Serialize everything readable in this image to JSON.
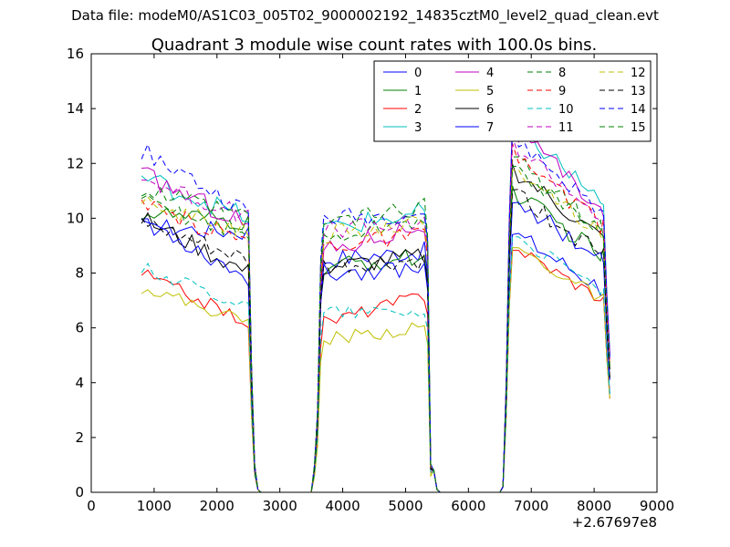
{
  "suptitle": "Data file: modeM0/AS1C03_005T02_9000002192_14835cztM0_level2_quad_clean.evt",
  "chart_data": {
    "type": "line",
    "title": "Quadrant 3 module wise count rates with 100.0s bins.",
    "xlabel": "",
    "ylabel": "",
    "x_offset_label": "+2.67697e8",
    "xlim": [
      0,
      9000
    ],
    "ylim": [
      0,
      16
    ],
    "x_ticks": [
      0,
      1000,
      2000,
      3000,
      4000,
      5000,
      6000,
      7000,
      8000,
      9000
    ],
    "y_ticks": [
      0,
      2,
      4,
      6,
      8,
      10,
      12,
      14,
      16
    ],
    "legend_position": "top-right",
    "legend_columns": 4,
    "x": [
      800,
      900,
      1000,
      1100,
      1200,
      1300,
      1400,
      1500,
      1600,
      1700,
      1800,
      1900,
      2000,
      2100,
      2200,
      2300,
      2400,
      2500,
      2550,
      2600,
      2650,
      2700,
      3500,
      3550,
      3600,
      3650,
      3700,
      3800,
      3900,
      4000,
      4100,
      4200,
      4300,
      4400,
      4500,
      4600,
      4700,
      4800,
      4900,
      5000,
      5100,
      5200,
      5300,
      5350,
      5400,
      5450,
      5500,
      5550,
      6500,
      6550,
      6600,
      6650,
      6700,
      6800,
      6900,
      7000,
      7100,
      7200,
      7300,
      7400,
      7500,
      7600,
      7700,
      7800,
      7900,
      8000,
      8100,
      8150,
      8200,
      8250
    ],
    "series": [
      {
        "name": "0",
        "color": "#0000ff",
        "dash": "solid",
        "level": [
          9.7,
          9.5,
          8.5,
          8.8,
          9.5
        ],
        "noise": 0.35
      },
      {
        "name": "1",
        "color": "#008000",
        "dash": "solid",
        "level": [
          10.2,
          9.8,
          8.2,
          8.6,
          11.0
        ],
        "noise": 0.35
      },
      {
        "name": "2",
        "color": "#ff0000",
        "dash": "solid",
        "level": [
          8.0,
          6.2,
          6.2,
          7.2,
          9.0
        ],
        "noise": 0.25
      },
      {
        "name": "3",
        "color": "#00bfbf",
        "dash": "solid",
        "level": [
          11.5,
          10.0,
          9.6,
          10.2,
          13.5
        ],
        "noise": 0.4
      },
      {
        "name": "4",
        "color": "#bf00bf",
        "dash": "solid",
        "level": [
          11.6,
          9.8,
          8.8,
          9.8,
          13.2
        ],
        "noise": 0.4
      },
      {
        "name": "5",
        "color": "#bfbf00",
        "dash": "solid",
        "level": [
          7.5,
          6.2,
          5.6,
          6.0,
          9.0
        ],
        "noise": 0.25
      },
      {
        "name": "6",
        "color": "#000000",
        "dash": "solid",
        "level": [
          10.0,
          8.0,
          8.2,
          8.6,
          11.8
        ],
        "noise": 0.35
      },
      {
        "name": "7",
        "color": "#0000ff",
        "dash": "solid",
        "level": [
          10.0,
          7.8,
          8.0,
          8.2,
          10.8
        ],
        "noise": 0.35
      },
      {
        "name": "8",
        "color": "#008000",
        "dash": "dashed",
        "level": [
          10.6,
          9.4,
          9.2,
          10.0,
          12.2
        ],
        "noise": 0.35
      },
      {
        "name": "9",
        "color": "#ff0000",
        "dash": "dashed",
        "level": [
          10.4,
          9.2,
          9.0,
          9.4,
          12.4
        ],
        "noise": 0.35
      },
      {
        "name": "10",
        "color": "#00bfbf",
        "dash": "dashed",
        "level": [
          8.2,
          6.8,
          6.6,
          6.6,
          9.4
        ],
        "noise": 0.25
      },
      {
        "name": "11",
        "color": "#bf00bf",
        "dash": "dashed",
        "level": [
          11.5,
          10.0,
          9.6,
          9.8,
          12.8
        ],
        "noise": 0.35
      },
      {
        "name": "12",
        "color": "#bfbf00",
        "dash": "dashed",
        "level": [
          10.5,
          9.6,
          9.4,
          9.8,
          12.0
        ],
        "noise": 0.35
      },
      {
        "name": "13",
        "color": "#000000",
        "dash": "dashed",
        "level": [
          9.8,
          8.4,
          8.2,
          8.4,
          11.0
        ],
        "noise": 0.35
      },
      {
        "name": "14",
        "color": "#0000ff",
        "dash": "dashed",
        "level": [
          12.5,
          10.2,
          10.0,
          10.2,
          13.0
        ],
        "noise": 0.35
      },
      {
        "name": "15",
        "color": "#008000",
        "dash": "dashed",
        "level": [
          11.0,
          10.0,
          9.8,
          10.4,
          12.0
        ],
        "noise": 0.35
      }
    ]
  }
}
